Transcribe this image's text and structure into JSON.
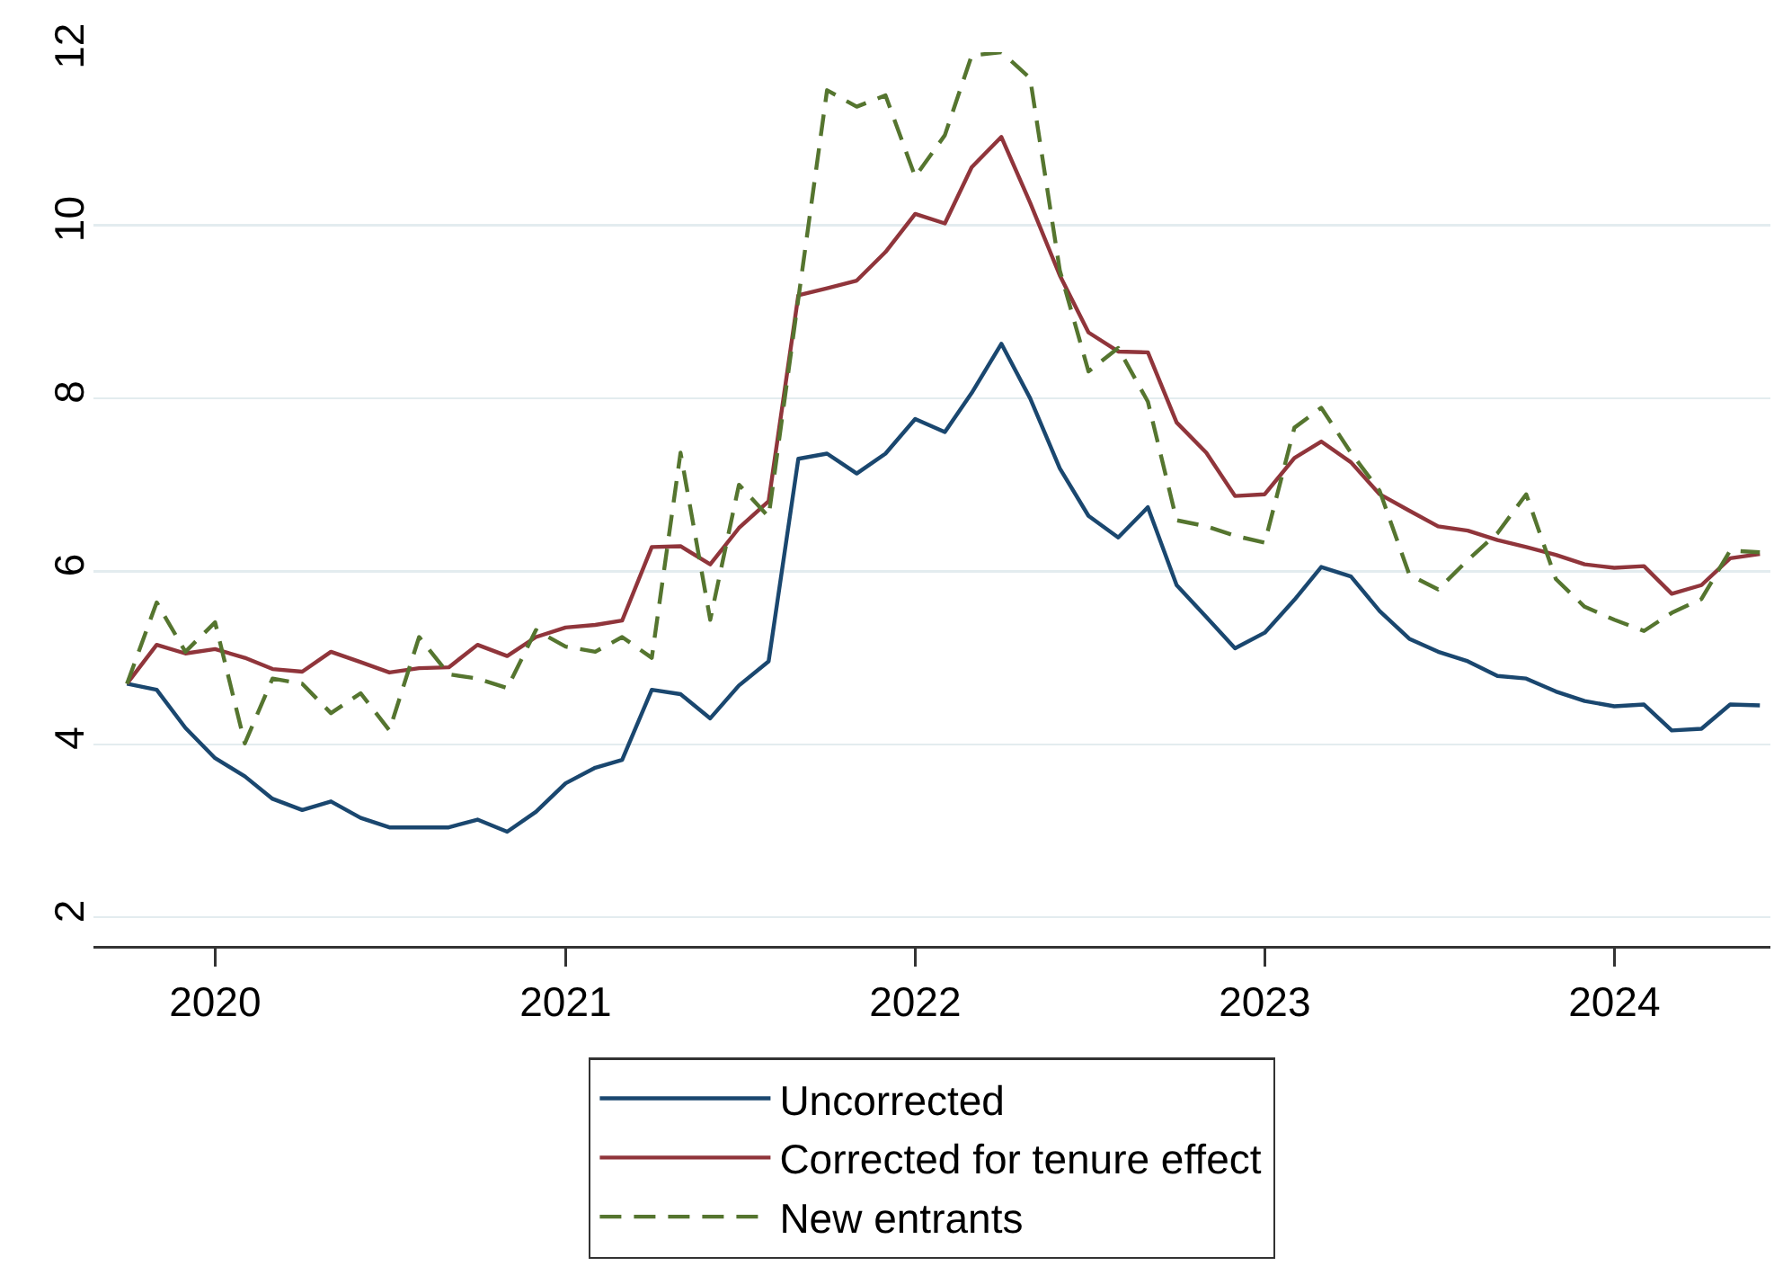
{
  "chart_data": {
    "type": "line",
    "x": [
      "2019-10",
      "2019-11",
      "2019-12",
      "2020-01",
      "2020-02",
      "2020-03",
      "2020-04",
      "2020-05",
      "2020-06",
      "2020-07",
      "2020-08",
      "2020-09",
      "2020-10",
      "2020-11",
      "2020-12",
      "2021-01",
      "2021-02",
      "2021-03",
      "2021-04",
      "2021-05",
      "2021-06",
      "2021-07",
      "2021-08",
      "2021-09",
      "2021-10",
      "2021-11",
      "2021-12",
      "2022-01",
      "2022-02",
      "2022-03",
      "2022-04",
      "2022-05",
      "2022-06",
      "2022-07",
      "2022-08",
      "2022-09",
      "2022-10",
      "2022-11",
      "2022-12",
      "2023-01",
      "2023-02",
      "2023-03",
      "2023-04",
      "2023-05",
      "2023-06",
      "2023-07",
      "2023-08",
      "2023-09",
      "2023-10",
      "2023-11",
      "2023-12",
      "2024-01",
      "2024-02",
      "2024-03",
      "2024-04",
      "2024-05",
      "2024-06"
    ],
    "series": [
      {
        "name": "Uncorrected",
        "color": "#1a476f",
        "values": [
          4.7,
          4.63,
          4.19,
          3.84,
          3.63,
          3.37,
          3.24,
          3.34,
          3.15,
          3.04,
          3.04,
          3.04,
          3.13,
          2.99,
          3.22,
          3.55,
          3.73,
          3.82,
          4.63,
          4.58,
          4.3,
          4.68,
          4.96,
          7.3,
          7.36,
          7.13,
          7.36,
          7.76,
          7.61,
          8.06,
          8.63,
          8.0,
          7.19,
          6.64,
          6.39,
          6.74,
          5.84,
          5.47,
          5.11,
          5.29,
          5.67,
          6.05,
          5.94,
          5.54,
          5.22,
          5.07,
          4.96,
          4.79,
          4.76,
          4.61,
          4.5,
          4.44,
          4.46,
          4.16,
          4.18,
          4.46,
          4.45
        ]
      },
      {
        "name": "Corrected for tenure effect",
        "color": "#90353b",
        "values": [
          4.7,
          5.15,
          5.05,
          5.1,
          5.0,
          4.87,
          4.84,
          5.07,
          4.95,
          4.83,
          4.88,
          4.89,
          5.15,
          5.02,
          5.24,
          5.35,
          5.38,
          5.43,
          6.28,
          6.29,
          6.08,
          6.5,
          6.81,
          9.19,
          9.27,
          9.36,
          9.69,
          10.13,
          10.02,
          10.67,
          11.02,
          10.26,
          9.42,
          8.76,
          8.54,
          8.53,
          7.72,
          7.37,
          6.87,
          6.89,
          7.31,
          7.5,
          7.26,
          6.89,
          6.7,
          6.52,
          6.47,
          6.36,
          6.28,
          6.19,
          6.08,
          6.04,
          6.06,
          5.74,
          5.84,
          6.15,
          6.2
        ]
      },
      {
        "name": "New entrants",
        "color": "#55752f",
        "line_style": "dashed",
        "values": [
          4.7,
          5.64,
          5.07,
          5.41,
          4.01,
          4.76,
          4.7,
          4.36,
          4.59,
          4.16,
          5.24,
          4.81,
          4.76,
          4.65,
          5.32,
          5.13,
          5.07,
          5.24,
          5.0,
          7.37,
          5.44,
          7.0,
          6.63,
          9.15,
          11.56,
          11.37,
          11.5,
          10.56,
          11.04,
          11.96,
          12.0,
          11.7,
          9.48,
          8.31,
          8.58,
          7.96,
          6.59,
          6.52,
          6.41,
          6.33,
          7.66,
          7.89,
          7.37,
          6.93,
          5.96,
          5.79,
          6.13,
          6.44,
          6.89,
          5.91,
          5.59,
          5.44,
          5.31,
          5.52,
          5.68,
          6.24,
          6.22
        ]
      }
    ],
    "xlim": [
      "2019-08-27",
      "2024-06-12"
    ],
    "xticks": [
      "2020",
      "2021",
      "2022",
      "2023",
      "2024"
    ],
    "ylim": [
      1.67,
      12
    ],
    "yticks": [
      2,
      4,
      6,
      8,
      10,
      12
    ],
    "grid": "y",
    "legend": "bottom"
  }
}
